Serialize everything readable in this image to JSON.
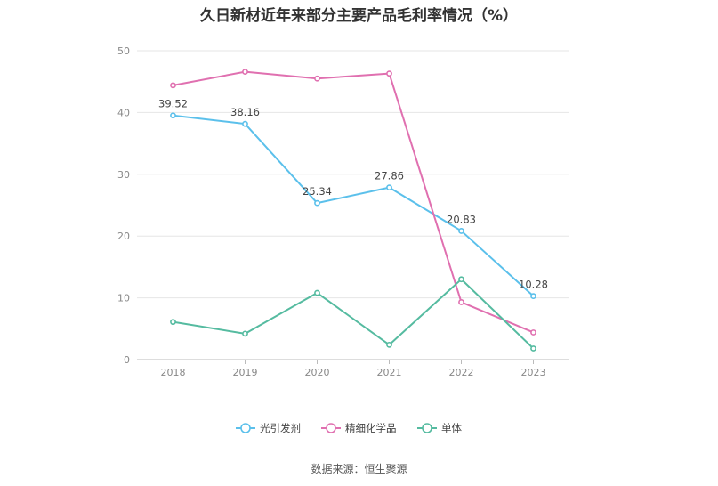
{
  "title": "久日新材近年来部分主要产品毛利率情况（%）",
  "source": "数据来源：恒生聚源",
  "chart_data": {
    "type": "line",
    "title": "久日新材近年来部分主要产品毛利率情况（%）",
    "xlabel": "",
    "ylabel": "",
    "categories": [
      "2018",
      "2019",
      "2020",
      "2021",
      "2022",
      "2023"
    ],
    "ylim": [
      0,
      50
    ],
    "yticks": [
      0,
      10,
      20,
      30,
      40,
      50
    ],
    "grid": true,
    "legend": "bottom",
    "series": [
      {
        "name": "光引发剂",
        "color": "#5bc0eb",
        "values": [
          39.52,
          38.16,
          25.34,
          27.86,
          20.83,
          10.28
        ],
        "labels": [
          "39.52",
          "38.16",
          "25.34",
          "27.86",
          "20.83",
          "10.28"
        ]
      },
      {
        "name": "精细化学品",
        "color": "#e070b0",
        "values": [
          44.4,
          46.6,
          45.5,
          46.3,
          9.3,
          4.4
        ],
        "labels": []
      },
      {
        "name": "单体",
        "color": "#55bba0",
        "values": [
          6.1,
          4.2,
          10.8,
          2.4,
          13.0,
          1.8
        ],
        "labels": []
      }
    ]
  }
}
